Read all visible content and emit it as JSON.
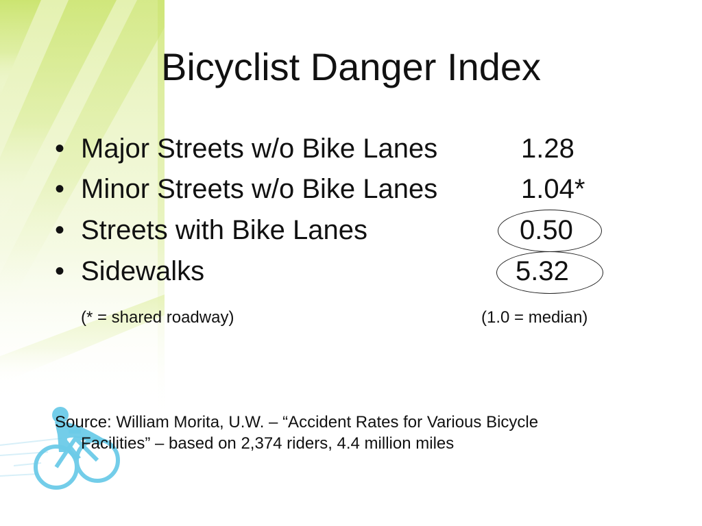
{
  "slide": {
    "title": "Bicyclist Danger Index",
    "bullet_glyph": "•",
    "items": [
      {
        "label": "Major Streets w/o Bike Lanes",
        "value": "1.28"
      },
      {
        "label": "Minor Streets w/o Bike Lanes",
        "value": "1.04*"
      },
      {
        "label": "Streets with Bike Lanes",
        "value": "0.50"
      },
      {
        "label": "Sidewalks",
        "value": "5.32"
      }
    ],
    "notes": {
      "left": "(* = shared roadway)",
      "right": "(1.0 = median)"
    },
    "source": {
      "line1": "Source: William Morita, U.W. – “Accident Rates for Various Bicycle",
      "line2": "Facilities” – based on 2,374 riders, 4.4 million miles"
    },
    "colors": {
      "accent_green": "#c9e36a",
      "light_green": "#eaf4c0",
      "bicycle_blue": "#6ccbe8"
    },
    "decoration_icon": "cyclist-icon"
  }
}
